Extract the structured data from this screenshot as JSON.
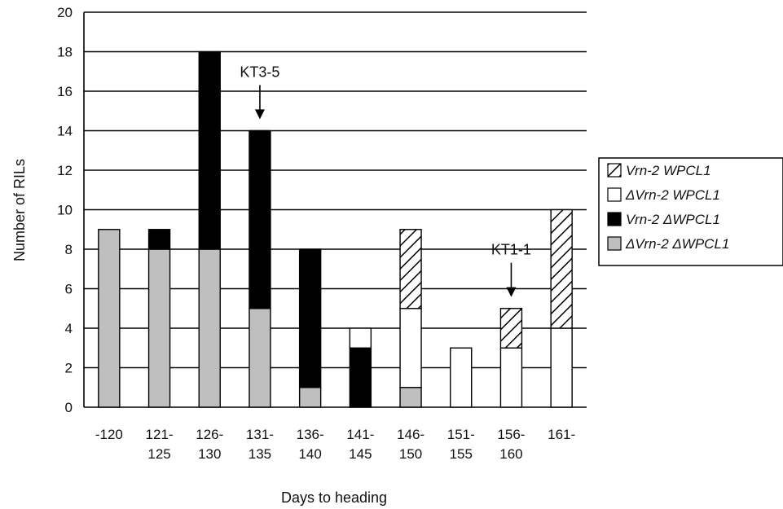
{
  "chart_data": {
    "type": "bar",
    "stacked": true,
    "title": "",
    "xlabel": "Days to heading",
    "ylabel": "Number of RILs",
    "ylim": [
      0,
      20
    ],
    "yticks": [
      "0",
      "2",
      "4",
      "6",
      "8",
      "10",
      "12",
      "14",
      "16",
      "18",
      "20"
    ],
    "grid": true,
    "legend_position": "right",
    "categories": [
      [
        "-120"
      ],
      [
        "121-",
        "125"
      ],
      [
        "126-",
        "130"
      ],
      [
        "131-",
        "135"
      ],
      [
        "136-",
        "140"
      ],
      [
        "141-",
        "145"
      ],
      [
        "146-",
        "150"
      ],
      [
        "151-",
        "155"
      ],
      [
        "156-",
        "160"
      ],
      [
        "161-"
      ]
    ],
    "series": [
      {
        "name": "ΔVrn-2 ΔWPCL1",
        "fill": "gray",
        "values": [
          9,
          8,
          8,
          5,
          1,
          0,
          1,
          0,
          0,
          0
        ]
      },
      {
        "name": "Vrn-2 ΔWPCL1",
        "fill": "black",
        "values": [
          0,
          1,
          10,
          9,
          7,
          3,
          0,
          0,
          0,
          0
        ]
      },
      {
        "name": "ΔVrn-2 WPCL1",
        "fill": "white",
        "values": [
          0,
          0,
          0,
          0,
          0,
          1,
          4,
          3,
          3,
          4
        ]
      },
      {
        "name": "Vrn-2 WPCL1",
        "fill": "hatch",
        "values": [
          0,
          0,
          0,
          0,
          0,
          0,
          4,
          0,
          2,
          6
        ]
      }
    ],
    "legend_order": [
      3,
      2,
      1,
      0
    ],
    "annotations": [
      {
        "text": "KT3-5",
        "category_index": 3,
        "arrow_to_value": 14.5
      },
      {
        "text": "KT1-1",
        "category_index": 8,
        "arrow_to_value": 5.5
      }
    ]
  },
  "colors": {
    "gray": "#bfbfbf",
    "black": "#000000",
    "white": "#ffffff",
    "hatch_line": "#000000",
    "grid": "#000000"
  }
}
